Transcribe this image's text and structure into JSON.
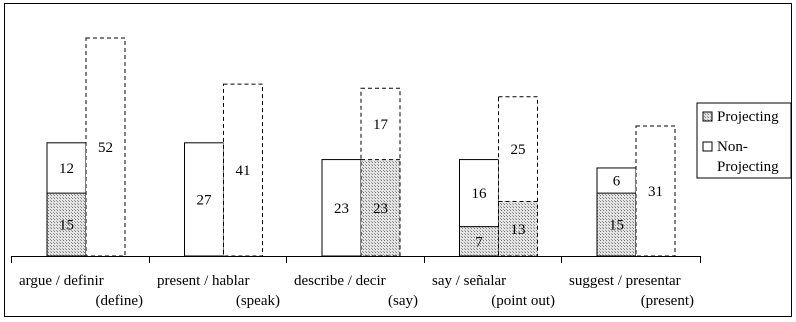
{
  "chart_data": {
    "type": "bar",
    "title": "",
    "xlabel": "",
    "ylabel": "",
    "ylim": [
      0,
      55
    ],
    "grid": false,
    "legend_position": "right",
    "categories": [
      {
        "line1": "argue / definir",
        "line2": "(define)"
      },
      {
        "line1": "present / hablar",
        "line2": "(speak)"
      },
      {
        "line1": "describe / decir",
        "line2": "(say)"
      },
      {
        "line1": "say / señalar",
        "line2": "(point out)"
      },
      {
        "line1": "suggest / presentar",
        "line2": "(present)"
      }
    ],
    "stacks": [
      {
        "border": "solid",
        "values": [
          {
            "projecting": 15,
            "non_projecting": 12
          },
          {
            "projecting": 0,
            "non_projecting": 27
          },
          {
            "projecting": 0,
            "non_projecting": 23
          },
          {
            "projecting": 7,
            "non_projecting": 16
          },
          {
            "projecting": 15,
            "non_projecting": 6
          }
        ]
      },
      {
        "border": "dashed",
        "values": [
          {
            "projecting": 0,
            "non_projecting": 52
          },
          {
            "projecting": 0,
            "non_projecting": 41
          },
          {
            "projecting": 23,
            "non_projecting": 17
          },
          {
            "projecting": 13,
            "non_projecting": 25
          },
          {
            "projecting": 0,
            "non_projecting": 31
          }
        ]
      }
    ],
    "series": [
      {
        "key": "projecting",
        "name_line1": "Projecting",
        "name_line2": "",
        "fill": "#d0d0d0",
        "pattern": "dotted-gray"
      },
      {
        "key": "non_projecting",
        "name_line1": "Non-",
        "name_line2": "Projecting",
        "fill": "#ffffff",
        "pattern": "none"
      }
    ]
  }
}
